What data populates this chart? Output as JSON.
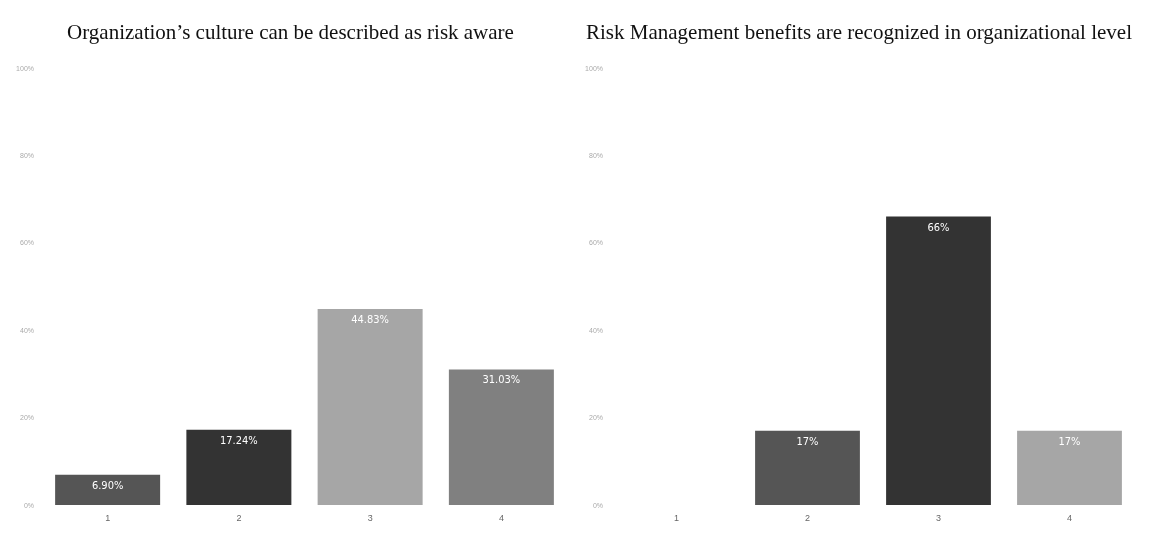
{
  "chart_data": [
    {
      "type": "bar",
      "title": "Organization’s culture can be described as risk aware",
      "categories": [
        "1",
        "2",
        "3",
        "4"
      ],
      "values": [
        6.9,
        17.24,
        44.83,
        31.03
      ],
      "colors": [
        "#555555",
        "#333333",
        "#a6a6a6",
        "#808080"
      ],
      "value_labels": [
        "6.90%",
        "17.24%",
        "44.83%",
        "31.03%"
      ],
      "ylim": [
        0,
        100
      ],
      "yticks": [
        {
          "value": 0,
          "label": "0%"
        },
        {
          "value": 20,
          "label": "20%"
        },
        {
          "value": 40,
          "label": "40%"
        },
        {
          "value": 60,
          "label": "60%"
        },
        {
          "value": 80,
          "label": "80%"
        },
        {
          "value": 100,
          "label": "100%"
        }
      ],
      "grid": false
    },
    {
      "type": "bar",
      "title": "Risk Management benefits are recognized in organizational level",
      "categories": [
        "1",
        "2",
        "3",
        "4"
      ],
      "values": [
        0,
        17,
        66,
        17
      ],
      "colors": [
        "#555555",
        "#555555",
        "#333333",
        "#a6a6a6"
      ],
      "value_labels": [
        null,
        "17%",
        "66%",
        "17%"
      ],
      "ylim": [
        0,
        100
      ],
      "yticks": [
        {
          "value": 0,
          "label": "0%"
        },
        {
          "value": 20,
          "label": "20%"
        },
        {
          "value": 40,
          "label": "40%"
        },
        {
          "value": 60,
          "label": "60%"
        },
        {
          "value": 80,
          "label": "80%"
        },
        {
          "value": 100,
          "label": "100%"
        }
      ],
      "grid": false
    }
  ]
}
